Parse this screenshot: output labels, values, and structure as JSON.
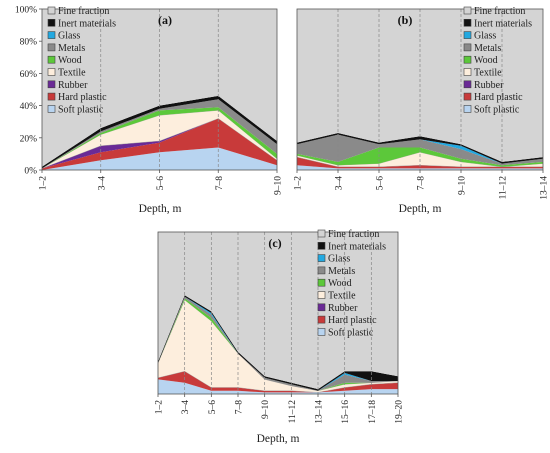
{
  "colors": {
    "Fine fraction": "#d4d4d4",
    "Inert materials": "#111111",
    "Glass": "#22a8e0",
    "Metals": "#8a8a8a",
    "Wood": "#5cc83a",
    "Textile": "#fdeedd",
    "Rubber": "#6a2a96",
    "Hard plastic": "#c83a3a",
    "Soft plastic": "#b8d4f0"
  },
  "chart_data": [
    {
      "type": "area",
      "stacked": true,
      "panel_label": "(a)",
      "xlabel": "Depth, m",
      "ylabel": "",
      "ylim": [
        0,
        100
      ],
      "y_ticks": [
        "0%",
        "20%",
        "40%",
        "60%",
        "80%",
        "100%"
      ],
      "y_tick_values": [
        0,
        20,
        40,
        60,
        80,
        100
      ],
      "categories": [
        "1–2",
        "3–4",
        "5–6",
        "7–8",
        "9–10"
      ],
      "legend_position": "top-left",
      "series": [
        {
          "name": "Soft plastic",
          "values": [
            0,
            6,
            11,
            14,
            3
          ]
        },
        {
          "name": "Hard plastic",
          "values": [
            1,
            5,
            6,
            18,
            3
          ]
        },
        {
          "name": "Rubber",
          "values": [
            0,
            4,
            1,
            0,
            0
          ]
        },
        {
          "name": "Textile",
          "values": [
            0,
            7,
            16,
            5,
            1
          ]
        },
        {
          "name": "Wood",
          "values": [
            0,
            1,
            3,
            2,
            3
          ]
        },
        {
          "name": "Metals",
          "values": [
            0,
            1,
            1,
            5,
            6
          ]
        },
        {
          "name": "Glass",
          "values": [
            0,
            0,
            0,
            0,
            0
          ]
        },
        {
          "name": "Inert materials",
          "values": [
            1,
            2,
            2,
            2,
            2
          ]
        },
        {
          "name": "Fine fraction",
          "values": [
            98,
            74,
            60,
            54,
            82
          ]
        }
      ]
    },
    {
      "type": "area",
      "stacked": true,
      "panel_label": "(b)",
      "xlabel": "Depth, m",
      "ylabel": "",
      "ylim": [
        0,
        100
      ],
      "categories": [
        "1–2",
        "3–4",
        "5–6",
        "7–8",
        "9–10",
        "11–12",
        "13–14"
      ],
      "legend_position": "top-right",
      "series": [
        {
          "name": "Soft plastic",
          "values": [
            3,
            1,
            1,
            1,
            1,
            1,
            1
          ]
        },
        {
          "name": "Hard plastic",
          "values": [
            5,
            1,
            1,
            2,
            1,
            1,
            1
          ]
        },
        {
          "name": "Rubber",
          "values": [
            0,
            0,
            0,
            0,
            0,
            0,
            0
          ]
        },
        {
          "name": "Textile",
          "values": [
            1,
            1,
            2,
            8,
            3,
            0,
            2
          ]
        },
        {
          "name": "Wood",
          "values": [
            1,
            2,
            10,
            3,
            2,
            1,
            1
          ]
        },
        {
          "name": "Metals",
          "values": [
            6,
            17,
            2,
            5,
            6,
            1,
            2
          ]
        },
        {
          "name": "Glass",
          "values": [
            0,
            0,
            0,
            0,
            2,
            0,
            0
          ]
        },
        {
          "name": "Inert materials",
          "values": [
            1,
            1,
            1,
            2,
            1,
            1,
            1
          ]
        },
        {
          "name": "Fine fraction",
          "values": [
            83,
            77,
            83,
            79,
            84,
            95,
            92
          ]
        }
      ]
    },
    {
      "type": "area",
      "stacked": true,
      "panel_label": "(c)",
      "xlabel": "Depth, m",
      "ylabel": "",
      "ylim": [
        0,
        100
      ],
      "categories": [
        "1–2",
        "3–4",
        "5–6",
        "7–8",
        "9–10",
        "11–12",
        "13–14",
        "15–16",
        "17–18",
        "19–20"
      ],
      "legend_position": "top-right",
      "series": [
        {
          "name": "Soft plastic",
          "values": [
            9,
            7,
            2,
            2,
            1,
            1,
            1,
            2,
            3,
            3
          ]
        },
        {
          "name": "Hard plastic",
          "values": [
            1,
            7,
            2,
            2,
            1,
            1,
            0,
            2,
            3,
            4
          ]
        },
        {
          "name": "Rubber",
          "values": [
            0,
            0,
            0,
            0,
            0,
            0,
            0,
            0,
            0,
            0
          ]
        },
        {
          "name": "Textile",
          "values": [
            9,
            44,
            41,
            21,
            7,
            3,
            1,
            2,
            1,
            1
          ]
        },
        {
          "name": "Wood",
          "values": [
            0,
            1,
            2,
            0,
            0,
            0,
            0,
            1,
            0,
            0
          ]
        },
        {
          "name": "Metals",
          "values": [
            0,
            1,
            2,
            0,
            1,
            1,
            0,
            5,
            1,
            0
          ]
        },
        {
          "name": "Glass",
          "values": [
            0,
            0,
            1,
            0,
            0,
            0,
            0,
            1,
            0,
            0
          ]
        },
        {
          "name": "Inert materials",
          "values": [
            1,
            1,
            1,
            1,
            1,
            1,
            1,
            1,
            6,
            3
          ]
        },
        {
          "name": "Fine fraction",
          "values": [
            80,
            39,
            49,
            74,
            89,
            93,
            97,
            86,
            86,
            89
          ]
        }
      ]
    }
  ]
}
